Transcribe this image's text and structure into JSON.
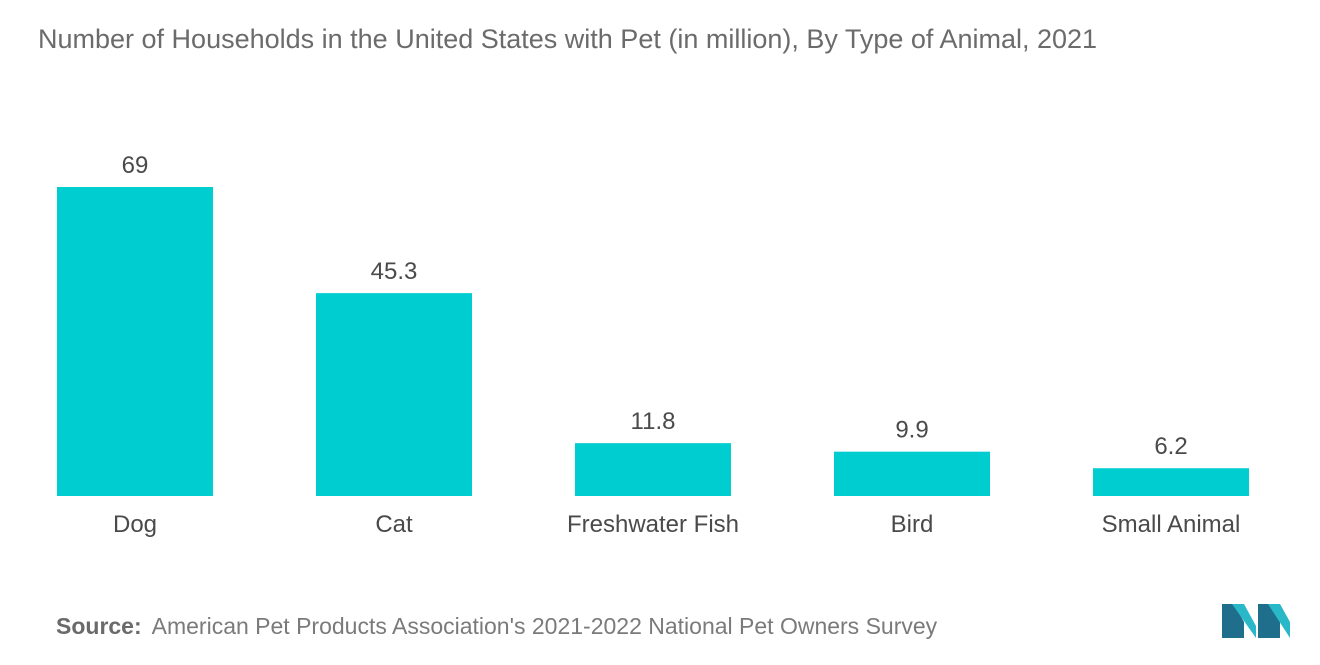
{
  "title": "Number of Households in the United States with Pet (in million), By Type of Animal, 2021",
  "source": {
    "label": "Source:",
    "text": "American Pet Products Association's 2021-2022 National Pet Owners Survey"
  },
  "colors": {
    "bar": "#00CDD0",
    "logo_dark": "#1E6E8C",
    "logo_light": "#29B8C8"
  },
  "logo_icon": "brand-logo-icon",
  "chart_data": {
    "type": "bar",
    "title": "Number of Households in the United States with Pet (in million), By Type of Animal, 2021",
    "categories": [
      "Dog",
      "Cat",
      "Freshwater Fish",
      "Bird",
      "Small Animal"
    ],
    "values": [
      69,
      45.3,
      11.8,
      9.9,
      6.2
    ],
    "value_labels": [
      "69",
      "45.3",
      "11.8",
      "9.9",
      "6.2"
    ],
    "xlabel": "",
    "ylabel": "",
    "ylim": [
      0,
      69
    ],
    "grid": false,
    "legend": "none"
  }
}
